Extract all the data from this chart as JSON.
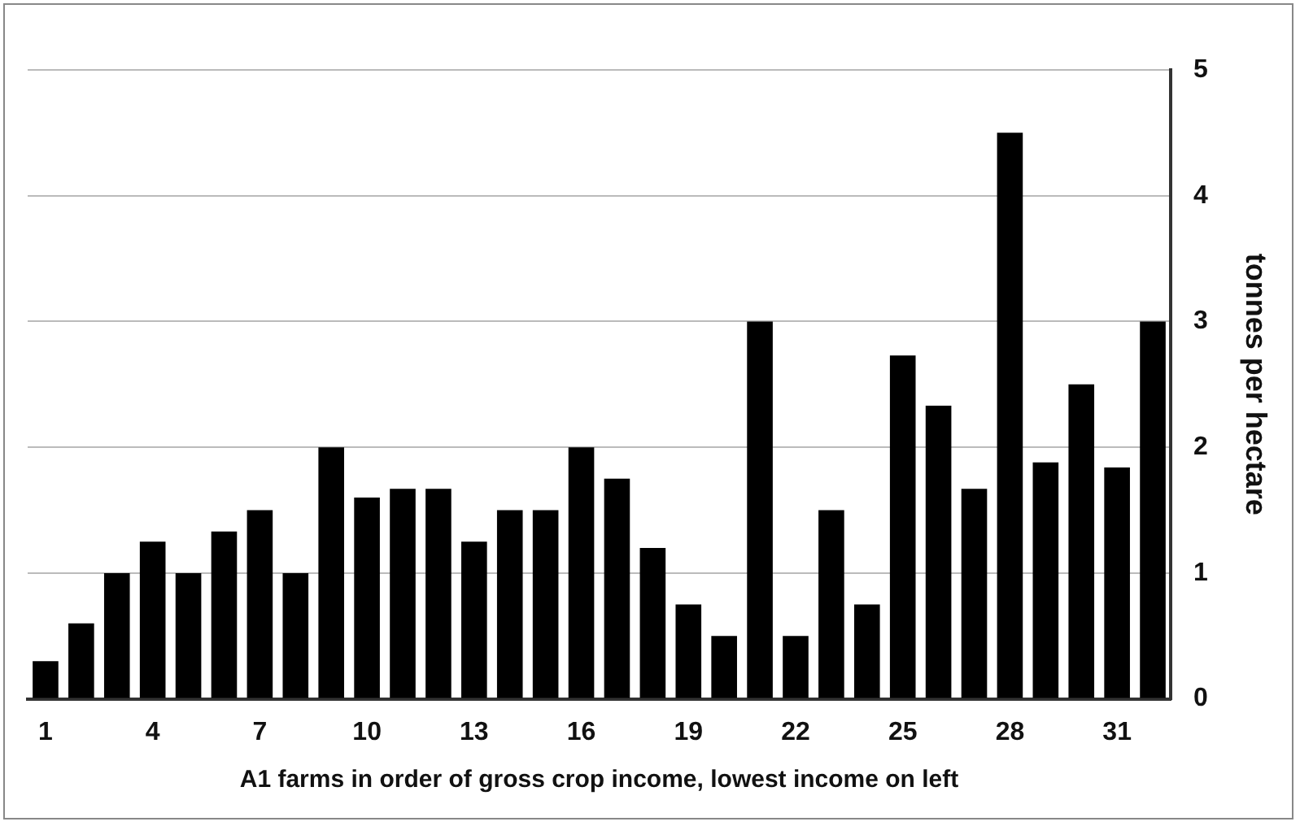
{
  "chart_data": {
    "type": "bar",
    "xlabel": "A1 farms in order of gross crop income, lowest income on left",
    "ylabel": "tonnes per hectare",
    "categories": [
      "1",
      null,
      null,
      "4",
      null,
      null,
      "7",
      null,
      null,
      "10",
      null,
      null,
      "13",
      null,
      null,
      "16",
      null,
      null,
      "19",
      null,
      null,
      "22",
      null,
      null,
      "25",
      null,
      null,
      "28",
      null,
      null,
      "31",
      null
    ],
    "values": [
      0.3,
      0.6,
      1.0,
      1.25,
      1.0,
      1.33,
      1.5,
      1.0,
      2.0,
      1.6,
      1.67,
      1.67,
      1.25,
      1.5,
      1.5,
      2.0,
      1.75,
      1.2,
      0.75,
      0.5,
      3.0,
      0.5,
      1.5,
      0.75,
      2.73,
      2.33,
      1.67,
      4.5,
      1.88,
      2.5,
      1.84,
      3.0
    ],
    "color": "#000000",
    "ylim": [
      0,
      5
    ],
    "yticks": [
      0,
      1,
      2,
      3,
      4,
      5
    ],
    "grid": "y",
    "legend": false
  }
}
